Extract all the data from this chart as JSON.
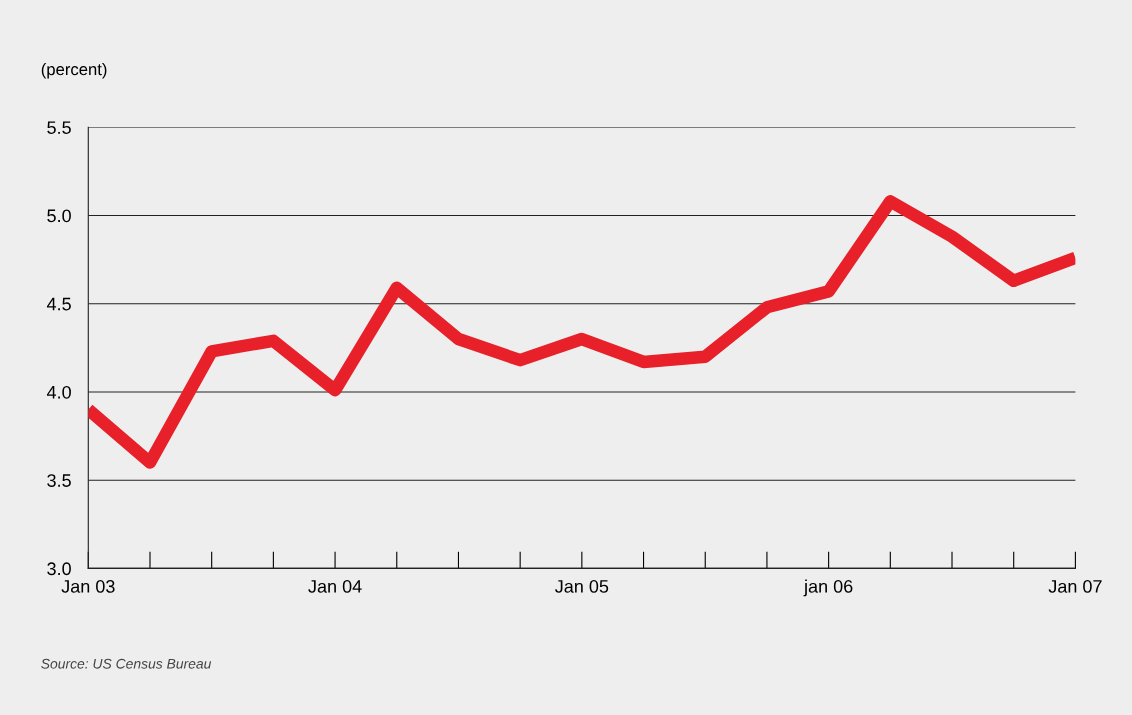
{
  "chart_data": {
    "type": "line",
    "ylabel": "(percent)",
    "categories": [
      "Jan 03",
      null,
      null,
      null,
      "Jan 04",
      null,
      null,
      null,
      "Jan 05",
      null,
      null,
      null,
      "jan 06",
      null,
      null,
      null,
      "Jan 07"
    ],
    "series": [
      {
        "color": "#e8202a",
        "values": [
          3.9,
          3.6,
          4.23,
          4.29,
          4.01,
          4.59,
          4.3,
          4.18,
          4.3,
          4.17,
          4.2,
          4.48,
          4.57,
          5.08,
          4.88,
          4.63,
          4.76
        ]
      }
    ],
    "ylim": [
      3.0,
      5.5
    ],
    "yticks": [
      {
        "value": 3.0,
        "label": "3.0"
      },
      {
        "value": 3.5,
        "label": "3.5"
      },
      {
        "value": 4.0,
        "label": "4.0"
      },
      {
        "value": 4.5,
        "label": "4.5"
      },
      {
        "value": 5.0,
        "label": "5.0"
      },
      {
        "value": 5.5,
        "label": "5.5"
      }
    ],
    "grid": "y",
    "marker": "none",
    "line_style": "solid",
    "annotations": [
      "Source: US Census Bureau"
    ]
  }
}
